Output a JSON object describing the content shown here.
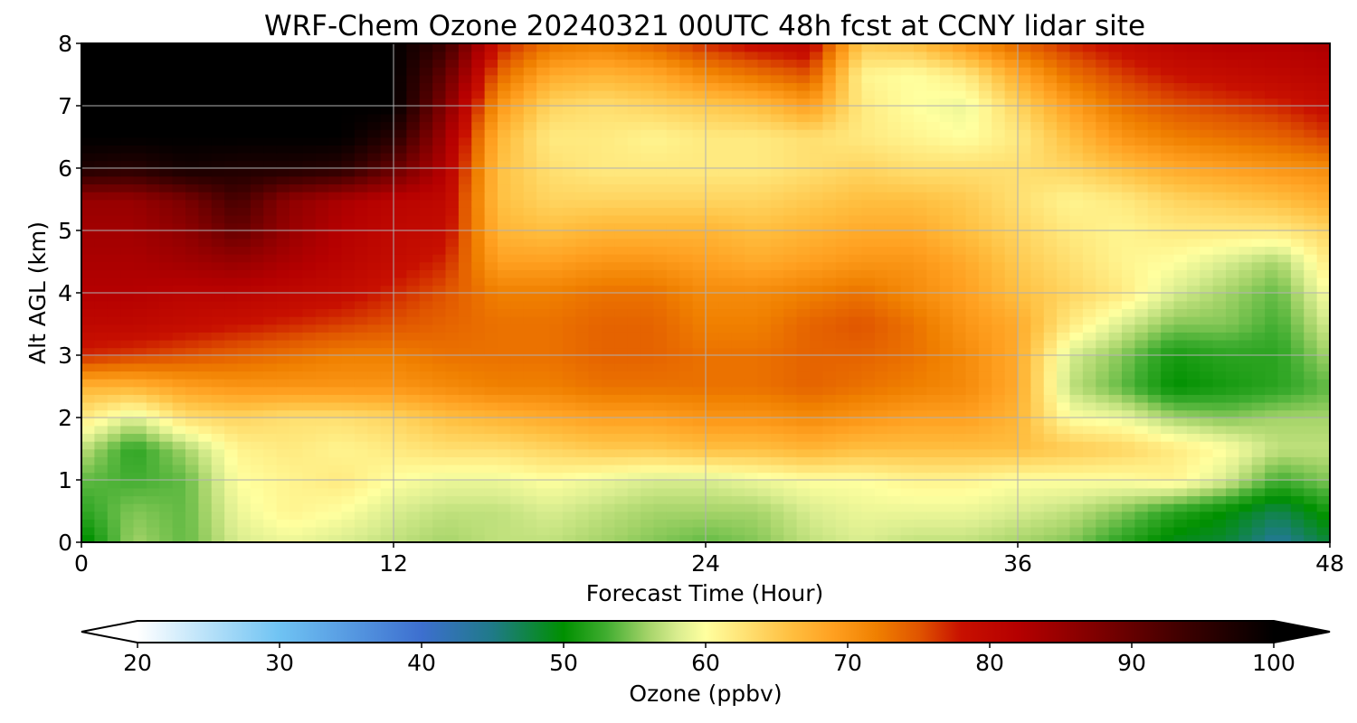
{
  "chart_data": {
    "type": "heatmap",
    "title": "WRF-Chem Ozone  20240321 00UTC 48h fcst at CCNY lidar site",
    "xlabel": "Forecast Time (Hour)",
    "ylabel": "Alt AGL (km)",
    "xlim": [
      0,
      48
    ],
    "ylim": [
      0,
      8
    ],
    "x_ticks": [
      "0",
      "12",
      "24",
      "36",
      "48"
    ],
    "x_tick_values": [
      0,
      12,
      24,
      36,
      48
    ],
    "y_ticks": [
      "0",
      "1",
      "2",
      "3",
      "4",
      "5",
      "6",
      "7",
      "8"
    ],
    "y_tick_values": [
      0,
      1,
      2,
      3,
      4,
      5,
      6,
      7,
      8
    ],
    "grid": true,
    "x": [
      0,
      2,
      4,
      6,
      8,
      10,
      12,
      14,
      16,
      18,
      20,
      22,
      24,
      26,
      28,
      30,
      32,
      34,
      36,
      38,
      40,
      42,
      44,
      46,
      48
    ],
    "y": [
      0,
      0.5,
      1,
      1.5,
      2,
      2.5,
      3,
      3.5,
      4,
      4.5,
      5,
      5.5,
      6,
      6.5,
      7,
      7.5,
      8
    ],
    "z": [
      [
        49,
        56,
        54,
        58,
        59,
        58,
        57,
        56,
        57,
        57,
        56,
        55,
        54,
        55,
        57,
        58,
        57,
        57,
        56,
        55,
        52,
        49,
        48,
        44,
        48
      ],
      [
        52,
        55,
        54,
        59,
        61,
        60,
        58,
        57,
        57,
        58,
        57,
        56,
        56,
        56,
        58,
        59,
        59,
        59,
        58,
        57,
        55,
        52,
        50,
        47,
        51
      ],
      [
        54,
        53,
        54,
        60,
        61,
        62,
        60,
        59,
        59,
        60,
        59,
        58,
        58,
        59,
        60,
        60,
        61,
        61,
        60,
        60,
        60,
        61,
        58,
        53,
        55
      ],
      [
        57,
        52,
        56,
        61,
        62,
        61,
        62,
        63,
        63,
        64,
        65,
        65,
        66,
        66,
        67,
        66,
        66,
        66,
        66,
        65,
        64,
        62,
        60,
        57,
        57
      ],
      [
        62,
        58,
        63,
        64,
        63,
        63,
        64,
        66,
        67,
        68,
        69,
        69,
        70,
        70,
        71,
        70,
        69,
        69,
        67,
        60,
        59,
        56,
        55,
        56,
        56
      ],
      [
        67,
        67,
        69,
        70,
        70,
        70,
        70,
        71,
        72,
        72,
        73,
        73,
        73,
        73,
        74,
        73,
        72,
        71,
        68,
        57,
        54,
        50,
        51,
        52,
        54
      ],
      [
        77,
        76,
        75,
        74,
        73,
        72,
        72,
        73,
        73,
        73,
        74,
        74,
        73,
        73,
        74,
        74,
        73,
        71,
        68,
        58,
        55,
        51,
        52,
        52,
        56
      ],
      [
        80,
        80,
        79,
        78,
        77,
        76,
        75,
        74,
        73,
        73,
        74,
        74,
        72,
        72,
        74,
        75,
        73,
        70,
        68,
        62,
        58,
        55,
        55,
        53,
        58
      ],
      [
        82,
        82,
        81,
        81,
        80,
        79,
        77,
        75,
        72,
        72,
        73,
        73,
        71,
        71,
        72,
        73,
        71,
        69,
        66,
        64,
        62,
        58,
        56,
        54,
        60
      ],
      [
        83,
        83,
        84,
        85,
        83,
        81,
        79,
        77,
        69,
        69,
        70,
        70,
        69,
        68,
        69,
        70,
        70,
        68,
        65,
        63,
        61,
        60,
        58,
        56,
        62
      ],
      [
        84,
        84,
        86,
        90,
        85,
        82,
        80,
        79,
        67,
        66,
        67,
        67,
        67,
        66,
        67,
        68,
        68,
        66,
        64,
        62,
        61,
        62,
        62,
        62,
        64
      ],
      [
        85,
        85,
        88,
        93,
        86,
        83,
        81,
        80,
        66,
        64,
        64,
        64,
        64,
        64,
        65,
        66,
        66,
        65,
        63,
        61,
        62,
        64,
        65,
        66,
        68
      ],
      [
        97,
        96,
        98,
        97,
        97,
        96,
        90,
        82,
        66,
        63,
        62,
        62,
        62,
        62,
        63,
        64,
        63,
        63,
        63,
        64,
        66,
        68,
        69,
        70,
        71
      ],
      [
        100,
        100,
        100,
        100,
        100,
        100,
        96,
        84,
        67,
        62,
        62,
        61,
        62,
        62,
        63,
        62,
        61,
        60,
        62,
        66,
        70,
        72,
        73,
        74,
        76
      ],
      [
        100,
        100,
        100,
        100,
        100,
        100,
        100,
        87,
        70,
        64,
        63,
        64,
        65,
        66,
        69,
        62,
        60,
        59,
        64,
        69,
        73,
        75,
        76,
        77,
        79
      ],
      [
        100,
        100,
        100,
        100,
        100,
        100,
        100,
        90,
        74,
        68,
        67,
        68,
        71,
        73,
        75,
        61,
        60,
        62,
        68,
        73,
        76,
        78,
        79,
        80,
        81
      ],
      [
        100,
        100,
        100,
        100,
        100,
        100,
        100,
        94,
        78,
        73,
        72,
        74,
        77,
        79,
        80,
        65,
        66,
        70,
        74,
        77,
        79,
        81,
        82,
        82,
        83
      ]
    ],
    "colorbar": {
      "label": "Ozone  (ppbv)",
      "min": 20,
      "max": 100,
      "ticks": [
        "20",
        "30",
        "40",
        "50",
        "60",
        "70",
        "80",
        "90",
        "100"
      ],
      "tick_values": [
        20,
        30,
        40,
        50,
        60,
        70,
        80,
        90,
        100
      ],
      "extend": "both",
      "stops": [
        {
          "value": 20,
          "color": "#ffffff"
        },
        {
          "value": 30,
          "color": "#6fc3f3"
        },
        {
          "value": 40,
          "color": "#3d6fcf"
        },
        {
          "value": 45,
          "color": "#1f7a88"
        },
        {
          "value": 50,
          "color": "#009000"
        },
        {
          "value": 53,
          "color": "#40ad30"
        },
        {
          "value": 56,
          "color": "#a6d46a"
        },
        {
          "value": 58,
          "color": "#d9ed8f"
        },
        {
          "value": 60,
          "color": "#ffff9f"
        },
        {
          "value": 63,
          "color": "#ffdf70"
        },
        {
          "value": 66,
          "color": "#ffbf40"
        },
        {
          "value": 69,
          "color": "#ffa020"
        },
        {
          "value": 72,
          "color": "#f08000"
        },
        {
          "value": 75,
          "color": "#e05500"
        },
        {
          "value": 78,
          "color": "#c81000"
        },
        {
          "value": 82,
          "color": "#b50000"
        },
        {
          "value": 88,
          "color": "#7a0000"
        },
        {
          "value": 94,
          "color": "#3a0000"
        },
        {
          "value": 100,
          "color": "#000000"
        }
      ]
    }
  }
}
